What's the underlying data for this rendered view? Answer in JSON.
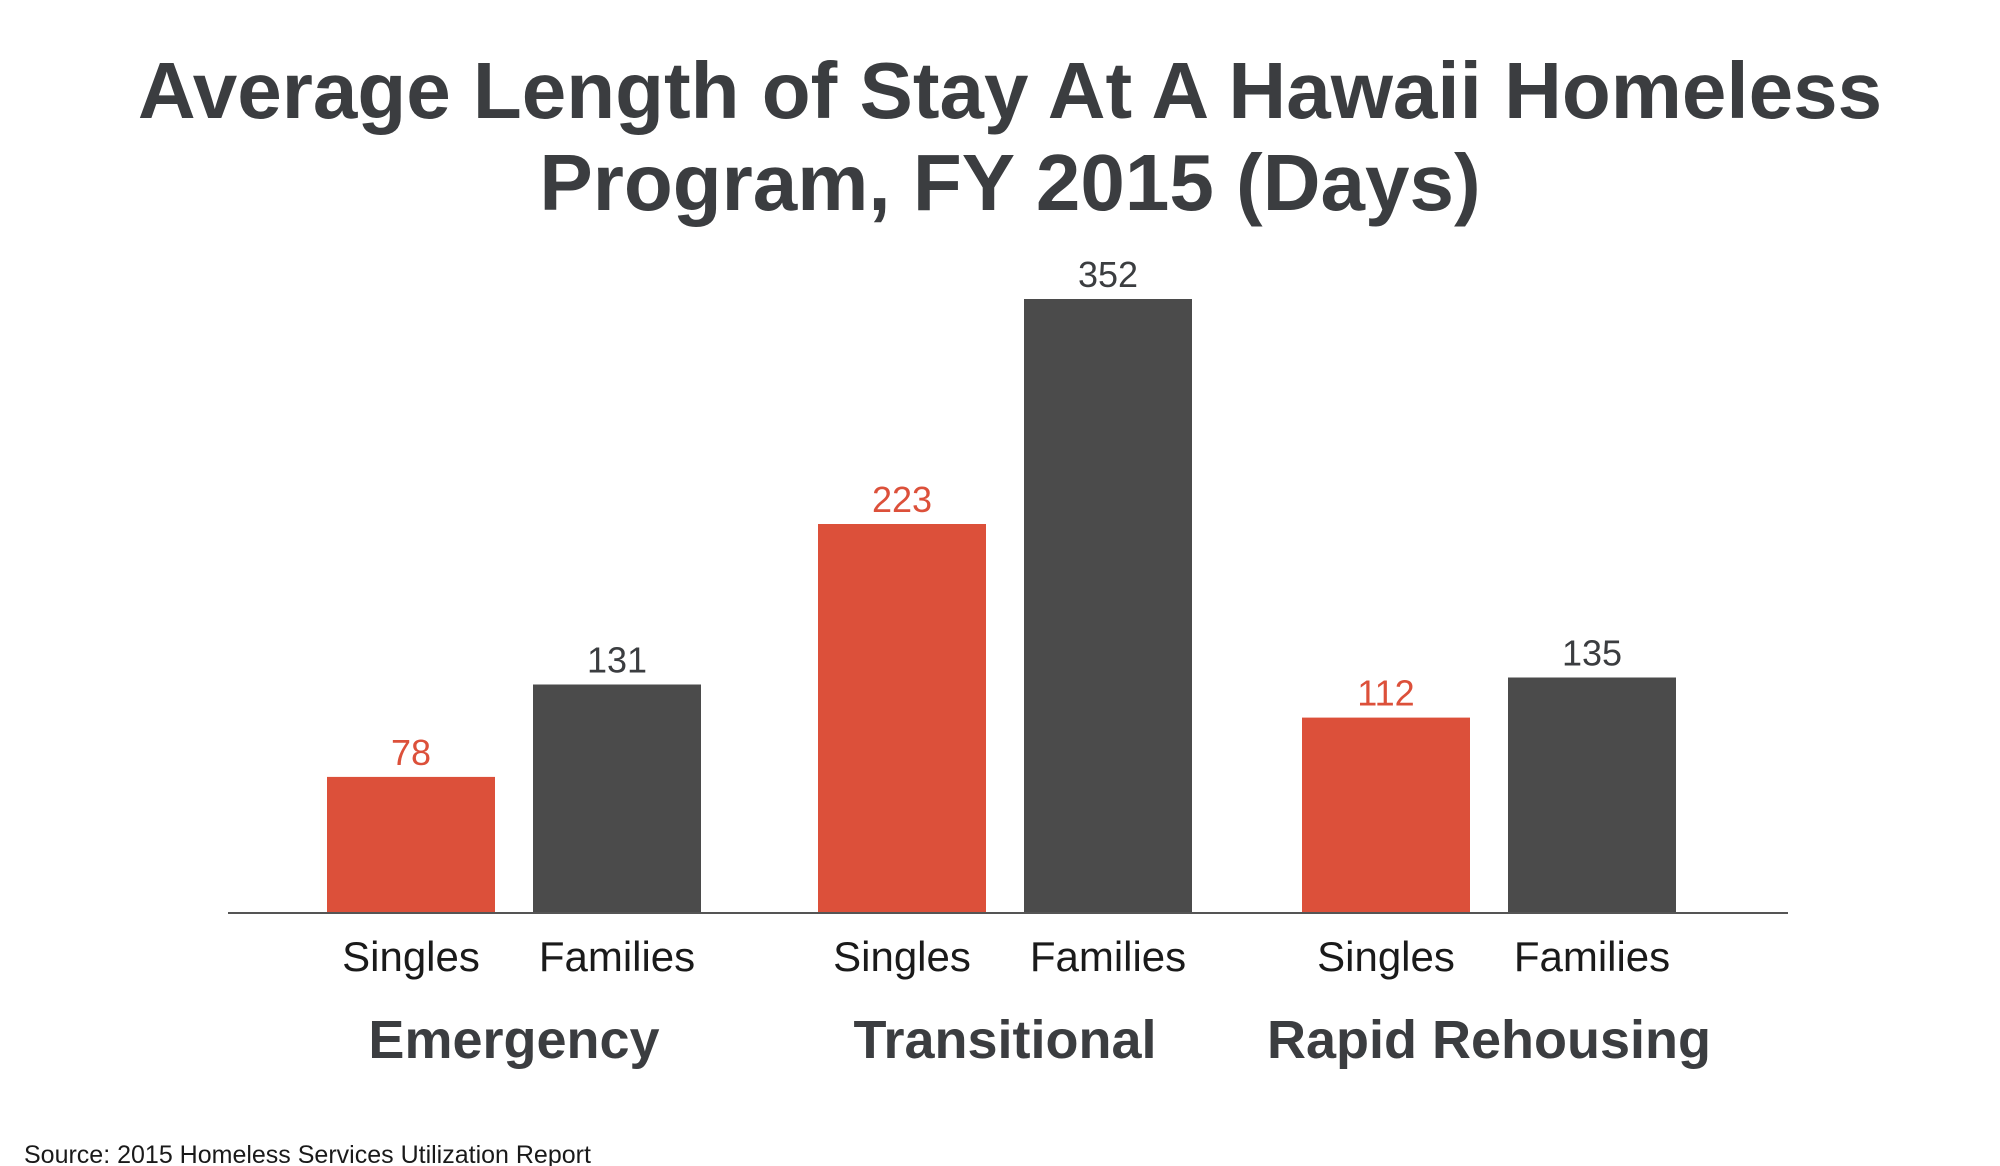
{
  "chart_data": {
    "type": "bar",
    "title_lines": [
      "Average Length of Stay At A Hawaii Homeless",
      "Program, FY 2015 (Days)"
    ],
    "groups": [
      {
        "label": "Emergency",
        "bars": [
          {
            "label": "Singles",
            "value": 78
          },
          {
            "label": "Families",
            "value": 131
          }
        ]
      },
      {
        "label": "Transitional",
        "bars": [
          {
            "label": "Singles",
            "value": 223
          },
          {
            "label": "Families",
            "value": 352
          }
        ]
      },
      {
        "label": "Rapid Rehousing",
        "bars": [
          {
            "label": "Singles",
            "value": 112
          },
          {
            "label": "Families",
            "value": 135
          }
        ]
      }
    ],
    "colors": {
      "Singles": "#dc503a",
      "Families": "#4b4b4b"
    },
    "ylim": [
      0,
      352
    ],
    "grid": false,
    "source": "Source: 2015 Homeless Services Utilization Report"
  }
}
